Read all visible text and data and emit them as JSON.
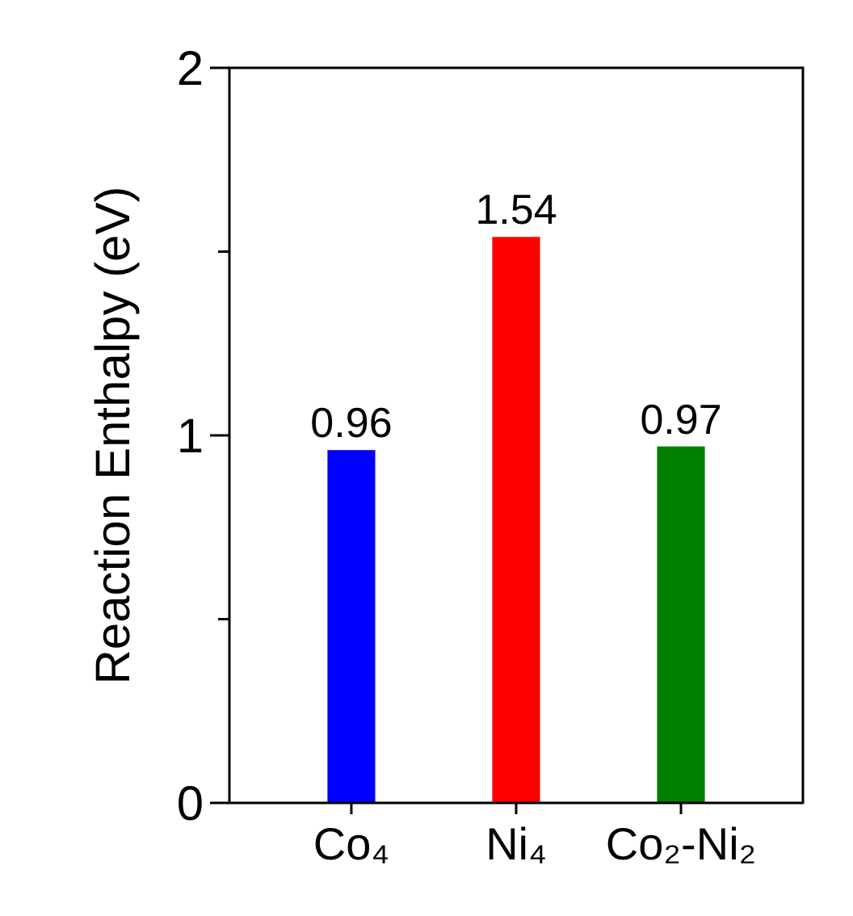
{
  "chart_data": {
    "type": "bar",
    "ylabel": "Reaction Enthalpy (eV)",
    "categories": [
      "Co₄",
      "Ni₄",
      "Co₂-Ni₂"
    ],
    "values": [
      0.96,
      1.54,
      0.97
    ],
    "colors": [
      "#0000ff",
      "#ff0000",
      "#008000"
    ],
    "ylim": [
      0,
      2
    ],
    "yticks": [
      0,
      {
        "value": 0.5,
        "label": null
      },
      1,
      {
        "value": 1.5,
        "label": null
      },
      2
    ],
    "data_labels": true
  }
}
